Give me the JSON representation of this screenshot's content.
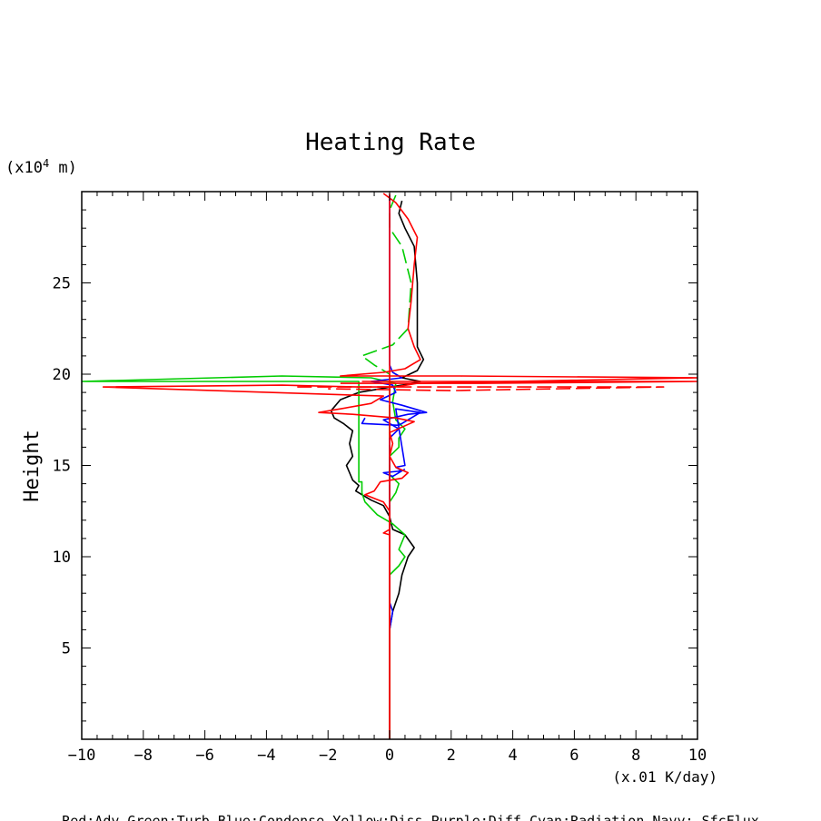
{
  "chart_data": {
    "type": "line",
    "title": "Heating Rate",
    "xlabel": "(x.01 K/day)",
    "ylabel": "Height",
    "yunit_prefix": "(x10",
    "yunit_exp": "4",
    "yunit_suffix": " m)",
    "xlim": [
      -10,
      10
    ],
    "ylim": [
      0,
      30
    ],
    "grid": false,
    "x_ticks": [
      -10,
      -8,
      -6,
      -4,
      -2,
      0,
      2,
      4,
      6,
      8,
      10
    ],
    "y_ticks": [
      5,
      10,
      15,
      20,
      25
    ],
    "legend_text": "Red:Adv  Green:Turb  Blue:Condense  Yellow:Diss  Purple:Diff  Cyan:Radiation  Navy: SfcFlux",
    "series": [
      {
        "color": "#000000",
        "dash": false,
        "points": [
          [
            0,
            0
          ],
          [
            0,
            6
          ],
          [
            0.1,
            7
          ],
          [
            0.3,
            8
          ],
          [
            0.4,
            9
          ],
          [
            0.6,
            10
          ],
          [
            0.8,
            10.5
          ],
          [
            0.5,
            11.2
          ],
          [
            0.1,
            11.5
          ],
          [
            0,
            12.2
          ],
          [
            -0.2,
            12.8
          ],
          [
            -0.6,
            13.1
          ],
          [
            -0.9,
            13.4
          ],
          [
            -1.1,
            13.6
          ],
          [
            -1.0,
            13.9
          ],
          [
            -1.2,
            14.2
          ],
          [
            -1.3,
            14.6
          ],
          [
            -1.4,
            15.0
          ],
          [
            -1.2,
            15.5
          ],
          [
            -1.3,
            16.2
          ],
          [
            -1.2,
            16.9
          ],
          [
            -1.5,
            17.3
          ],
          [
            -1.8,
            17.6
          ],
          [
            -1.9,
            18.0
          ],
          [
            -1.6,
            18.6
          ],
          [
            -1.0,
            19.0
          ],
          [
            0.4,
            19.4
          ],
          [
            1.0,
            19.6
          ],
          [
            0.4,
            19.8
          ],
          [
            0.9,
            20.2
          ],
          [
            1.1,
            20.8
          ],
          [
            0.9,
            21.5
          ],
          [
            0.9,
            23
          ],
          [
            0.9,
            25
          ],
          [
            0.8,
            27
          ],
          [
            0.5,
            28
          ],
          [
            0.3,
            28.8
          ],
          [
            0.4,
            29.5
          ]
        ]
      },
      {
        "color": "#00cc00",
        "dash": false,
        "points": [
          [
            0,
            0
          ],
          [
            0,
            9
          ],
          [
            0.3,
            9.5
          ],
          [
            0.5,
            10
          ],
          [
            0.3,
            10.4
          ],
          [
            0.5,
            11.2
          ],
          [
            0.1,
            11.8
          ],
          [
            -0.4,
            12.3
          ],
          [
            -0.8,
            13.0
          ],
          [
            -0.9,
            13.5
          ],
          [
            -0.9,
            14.1
          ],
          [
            -1.0,
            14.1
          ],
          [
            -1.0,
            17
          ],
          [
            -1.0,
            19.6
          ],
          [
            -10,
            19.6
          ],
          [
            -3.5,
            19.9
          ],
          [
            -0.6,
            19.8
          ],
          [
            0.2,
            19.5
          ],
          [
            0.1,
            18.5
          ],
          [
            0.2,
            17.5
          ],
          [
            0.5,
            17.0
          ],
          [
            0.3,
            16.5
          ],
          [
            0.3,
            16.0
          ],
          [
            0,
            15.5
          ],
          [
            0,
            14.5
          ],
          [
            0.3,
            14.0
          ],
          [
            0.2,
            13.5
          ],
          [
            0,
            13.0
          ]
        ]
      },
      {
        "color": "#00cc00",
        "dash": true,
        "points": [
          [
            0,
            0
          ],
          [
            0,
            20
          ],
          [
            -0.5,
            20.5
          ],
          [
            -0.9,
            21
          ],
          [
            0.1,
            21.6
          ],
          [
            0.6,
            22.5
          ],
          [
            0.7,
            25
          ],
          [
            0.4,
            27
          ],
          [
            0,
            28
          ],
          [
            0,
            29
          ],
          [
            0.2,
            29.8
          ]
        ]
      },
      {
        "color": "#0000ff",
        "dash": false,
        "points": [
          [
            0,
            6
          ],
          [
            0.1,
            7
          ],
          [
            0,
            7.5
          ],
          [
            0,
            16.5
          ],
          [
            0.3,
            17
          ],
          [
            -0.2,
            17.5
          ],
          [
            0.6,
            17.8
          ],
          [
            1.2,
            17.9
          ],
          [
            0.4,
            18.3
          ],
          [
            -0.3,
            18.6
          ],
          [
            0.2,
            19.0
          ],
          [
            0.1,
            19.4
          ],
          [
            -0.6,
            19.6
          ],
          [
            0.4,
            19.8
          ],
          [
            0.1,
            20.1
          ],
          [
            0,
            20.5
          ],
          [
            0,
            29.8
          ]
        ]
      },
      {
        "color": "#0000ff",
        "dash": false,
        "points": [
          [
            -0.8,
            17.6
          ],
          [
            -0.9,
            17.3
          ],
          [
            0.3,
            17.2
          ],
          [
            1.0,
            17.9
          ],
          [
            0.2,
            18.1
          ],
          [
            0.5,
            15.0
          ],
          [
            0.2,
            14.9
          ],
          [
            0.4,
            14.7
          ],
          [
            -0.2,
            14.6
          ],
          [
            0.1,
            14.4
          ],
          [
            0.5,
            14.8
          ]
        ]
      },
      {
        "color": "#ff0000",
        "dash": false,
        "points": [
          [
            0,
            0
          ],
          [
            0,
            6
          ],
          [
            0,
            11.2
          ],
          [
            -0.2,
            11.3
          ],
          [
            0,
            11.5
          ],
          [
            0,
            12.5
          ],
          [
            -0.2,
            13.0
          ],
          [
            -0.8,
            13.4
          ],
          [
            -0.5,
            13.6
          ],
          [
            -0.3,
            14.1
          ],
          [
            0.4,
            14.3
          ],
          [
            0.6,
            14.6
          ],
          [
            0.2,
            14.9
          ],
          [
            0,
            15.5
          ],
          [
            0.1,
            16.2
          ],
          [
            0,
            16.8
          ],
          [
            0.4,
            17.1
          ],
          [
            0.8,
            17.4
          ],
          [
            0.2,
            17.6
          ],
          [
            -1.2,
            17.8
          ],
          [
            -2.3,
            17.9
          ],
          [
            -1.6,
            18.1
          ],
          [
            -0.6,
            18.4
          ],
          [
            -0.2,
            18.8
          ],
          [
            -9.3,
            19.3
          ],
          [
            -3.5,
            19.4
          ],
          [
            -1.0,
            19.3
          ],
          [
            0.2,
            19.3
          ],
          [
            0.9,
            19.5
          ],
          [
            10,
            19.8
          ],
          [
            2.3,
            19.9
          ],
          [
            -1.6,
            19.9
          ],
          [
            -0.2,
            20.1
          ],
          [
            0.5,
            20.3
          ],
          [
            1.0,
            20.8
          ],
          [
            0.8,
            21.5
          ],
          [
            0.6,
            22.5
          ],
          [
            0.7,
            24
          ],
          [
            0.8,
            26
          ],
          [
            0.9,
            27.5
          ],
          [
            0.6,
            28.5
          ],
          [
            0.2,
            29.4
          ],
          [
            -0.2,
            29.9
          ]
        ]
      },
      {
        "color": "#ff0000",
        "dash": false,
        "points": [
          [
            -0.9,
            19.6
          ],
          [
            10,
            19.6
          ],
          [
            3.0,
            19.5
          ],
          [
            -1.6,
            19.5
          ]
        ]
      },
      {
        "color": "#ff0000",
        "dash": true,
        "points": [
          [
            -3.0,
            19.3
          ],
          [
            8.9,
            19.3
          ],
          [
            2.0,
            19.1
          ],
          [
            -2.0,
            19.2
          ]
        ]
      },
      {
        "color": "#ff0000",
        "dash": false,
        "points": [
          [
            0,
            0
          ],
          [
            0,
            29.9
          ]
        ]
      }
    ]
  }
}
